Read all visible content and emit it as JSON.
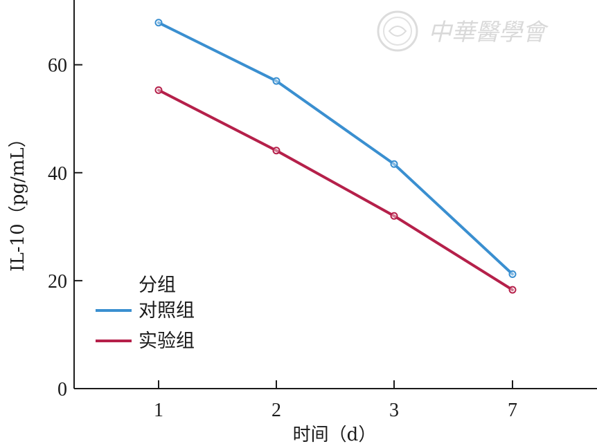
{
  "chart_data": {
    "type": "line",
    "title": "",
    "xlabel": "时间（d）",
    "ylabel": "IL-10（pg/mL）",
    "categories": [
      "1",
      "2",
      "3",
      "7"
    ],
    "ylim": [
      0,
      72
    ],
    "yticks": [
      0,
      20,
      40,
      60
    ],
    "grid": false,
    "legend": {
      "title": "分组",
      "placement": "bottom-left"
    },
    "series": [
      {
        "name": "对照组",
        "color": "#3a8fd0",
        "values": [
          67.8,
          57.0,
          41.6,
          21.2
        ]
      },
      {
        "name": "实验组",
        "color": "#b5204a",
        "values": [
          55.3,
          44.1,
          32.0,
          18.3
        ]
      }
    ]
  },
  "watermark": {
    "text": "中華醫學會",
    "icon": "society-seal-icon"
  }
}
